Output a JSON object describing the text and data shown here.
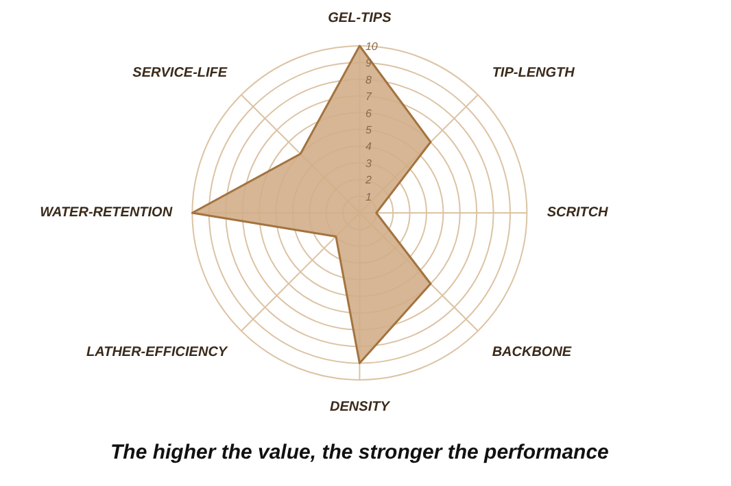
{
  "chart_data": {
    "type": "radar",
    "categories": [
      "GEL-TIPS",
      "TIP-LENGTH",
      "SCRITCH",
      "BACKBONE",
      "DENSITY",
      "LATHER-EFFICIENCY",
      "WATER-RETENTION",
      "SERVICE-LIFE"
    ],
    "series": [
      {
        "color": "#d2ae88",
        "values": [
          10,
          6,
          1,
          6,
          9,
          2,
          10,
          5
        ]
      }
    ],
    "ylim": [
      0,
      10
    ],
    "yticks": [
      1,
      2,
      3,
      4,
      5,
      6,
      7,
      8,
      9,
      10
    ],
    "grid": true,
    "annotations": [
      "The higher the value, the stronger the performance"
    ]
  }
}
